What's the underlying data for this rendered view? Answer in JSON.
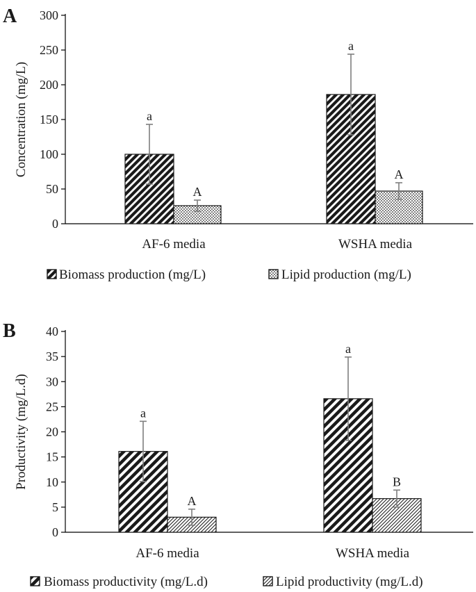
{
  "chart_data": [
    {
      "panel_label": "A",
      "type": "bar",
      "categories": [
        "AF-6 media",
        "WSHA media"
      ],
      "ylabel": "Concentration (mg/L)",
      "ylim": [
        0,
        300
      ],
      "yticks": [
        0,
        50,
        100,
        150,
        200,
        250,
        300
      ],
      "grid": false,
      "legend_position": "bottom",
      "series": [
        {
          "name": "Biomass production (mg/L)",
          "pattern": "diag-dense",
          "values": [
            100,
            186
          ],
          "errors": [
            43,
            58
          ],
          "labels": [
            "a",
            "a"
          ]
        },
        {
          "name": "Lipid production (mg/L)",
          "pattern": "dots",
          "values": [
            26,
            47
          ],
          "errors": [
            8,
            12
          ],
          "labels": [
            "A",
            "A"
          ]
        }
      ]
    },
    {
      "panel_label": "B",
      "type": "bar",
      "categories": [
        "AF-6 media",
        "WSHA media"
      ],
      "ylabel": "Productivity (mg/L.d)",
      "ylim": [
        0,
        40
      ],
      "yticks": [
        0,
        5,
        10,
        15,
        20,
        25,
        30,
        35,
        40
      ],
      "grid": false,
      "legend_position": "bottom",
      "series": [
        {
          "name": "Biomass productivity (mg/L.d)",
          "pattern": "diag-wide",
          "values": [
            16.1,
            26.6
          ],
          "errors": [
            6,
            8.3
          ],
          "labels": [
            "a",
            "a"
          ]
        },
        {
          "name": "Lipid productivity (mg/L.d)",
          "pattern": "diag-fine",
          "values": [
            3.0,
            6.7
          ],
          "errors": [
            1.6,
            1.7
          ],
          "labels": [
            "A",
            "B"
          ]
        }
      ]
    }
  ],
  "colors": {
    "ink": "#1a1a1a",
    "error_bar": "#7f7f7f",
    "axis": "#000000"
  }
}
